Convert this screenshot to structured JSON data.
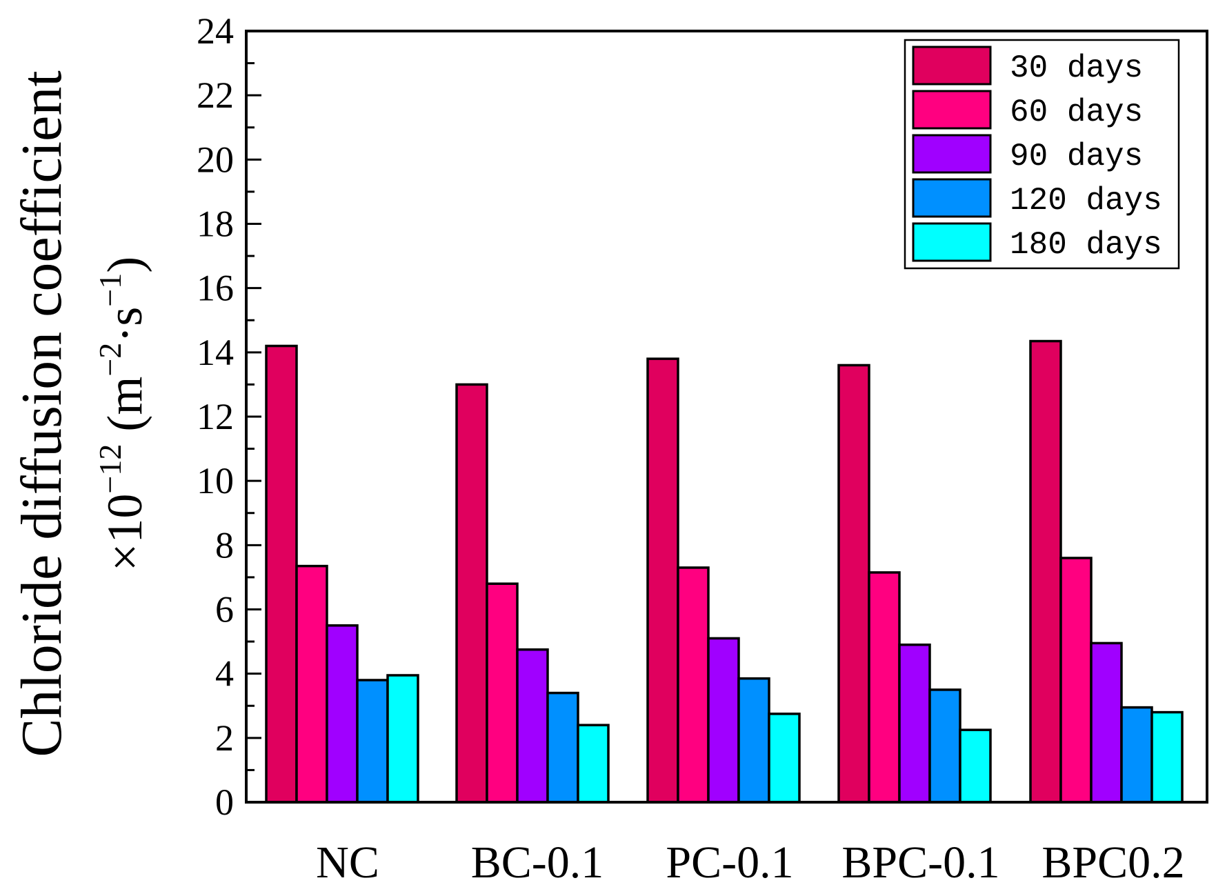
{
  "chart_data": {
    "type": "bar",
    "title": "",
    "xlabel": "",
    "ylabel": "Chloride diffusion coefficient",
    "ylabel_line2": {
      "prefix": "×10",
      "exponent": "−12",
      "unit_open": " (m",
      "unit_exp1": "−2",
      "unit_mid": "·s",
      "unit_exp2": "−1",
      "unit_close": ")"
    },
    "categories": [
      "NC",
      "BC-0.1",
      "PC-0.1",
      "BPC-0.1",
      "BPC0.2"
    ],
    "ylim": [
      0,
      24
    ],
    "yticks": [
      0,
      2,
      4,
      6,
      8,
      10,
      12,
      14,
      16,
      18,
      20,
      22,
      24
    ],
    "legend_position": "top-right",
    "series": [
      {
        "name": "30 days",
        "color": "#E0005E",
        "values": [
          14.2,
          13.0,
          13.8,
          13.6,
          14.35
        ]
      },
      {
        "name": "60 days",
        "color": "#FF0080",
        "values": [
          7.35,
          6.8,
          7.3,
          7.15,
          7.6
        ]
      },
      {
        "name": "90 days",
        "color": "#A000FF",
        "values": [
          5.5,
          4.75,
          5.1,
          4.9,
          4.95
        ]
      },
      {
        "name": "120 days",
        "color": "#0090FF",
        "values": [
          3.8,
          3.4,
          3.85,
          3.5,
          2.95
        ]
      },
      {
        "name": "180 days",
        "color": "#00FFFF",
        "values": [
          3.95,
          2.4,
          2.75,
          2.25,
          2.8
        ]
      }
    ]
  }
}
